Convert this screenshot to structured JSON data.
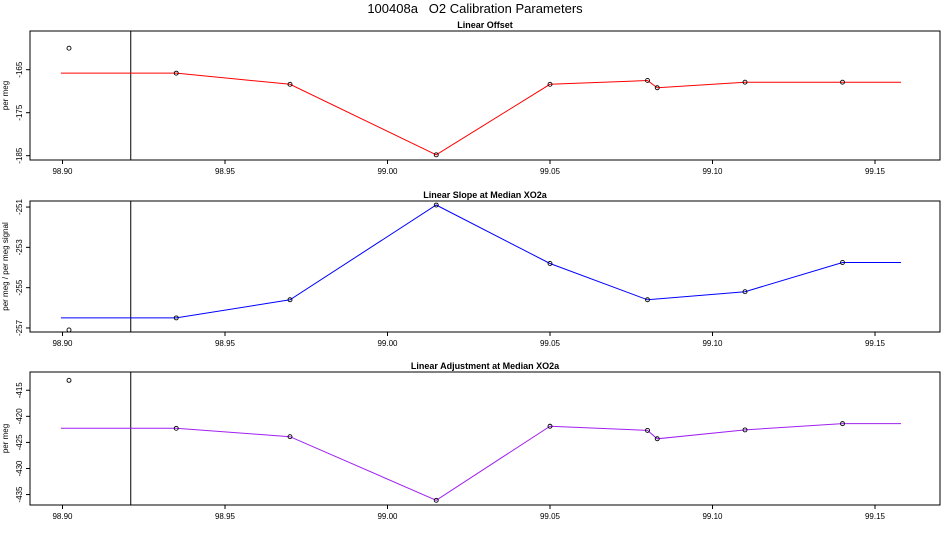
{
  "title": "100408a   O2 Calibration Parameters",
  "chart_data": [
    {
      "type": "line",
      "title": "Linear Offset",
      "ylabel": "per meg",
      "color": "#ff0000",
      "xlim": [
        98.89,
        99.17
      ],
      "ylim": [
        -186,
        -156
      ],
      "xticks": [
        98.9,
        98.95,
        99.0,
        99.05,
        99.1,
        99.15
      ],
      "yticks": [
        -165,
        -175,
        -185
      ],
      "vline_x": 98.921,
      "line": {
        "x": [
          98.8995,
          98.935,
          98.97,
          99.015,
          99.05,
          99.08,
          99.083,
          99.11,
          99.14,
          99.158
        ],
        "y": [
          -165.8,
          -165.8,
          -168.4,
          -184.8,
          -168.4,
          -167.5,
          -169.2,
          -167.9,
          -167.9,
          -167.9
        ]
      },
      "points": {
        "x": [
          98.902,
          98.935,
          98.97,
          99.015,
          99.05,
          99.08,
          99.083,
          99.11,
          99.14
        ],
        "y": [
          -160,
          -165.8,
          -168.4,
          -184.8,
          -168.4,
          -167.5,
          -169.2,
          -167.9,
          -167.9
        ]
      }
    },
    {
      "type": "line",
      "title": "Linear Slope at Median XO2a",
      "ylabel": "per meg / per meg signal",
      "color": "#0000ff",
      "xlim": [
        98.89,
        99.17
      ],
      "ylim": [
        -257.2,
        -250.7
      ],
      "xticks": [
        98.9,
        98.95,
        99.0,
        99.05,
        99.1,
        99.15
      ],
      "yticks": [
        -251,
        -253,
        -255,
        -257
      ],
      "vline_x": 98.921,
      "line": {
        "x": [
          98.8995,
          98.935,
          98.97,
          99.015,
          99.05,
          99.08,
          99.11,
          99.14,
          99.158
        ],
        "y": [
          -256.5,
          -256.5,
          -255.6,
          -250.9,
          -253.8,
          -255.6,
          -255.2,
          -253.75,
          -253.75
        ]
      },
      "points": {
        "x": [
          98.902,
          98.935,
          98.97,
          99.015,
          99.05,
          99.08,
          99.11,
          99.14
        ],
        "y": [
          -257.1,
          -256.5,
          -255.6,
          -250.9,
          -253.8,
          -255.6,
          -255.2,
          -253.75
        ]
      }
    },
    {
      "type": "line",
      "title": "Linear Adjustment at Median XO2a",
      "ylabel": "per meg",
      "color": "#a020f0",
      "xlim": [
        98.89,
        99.17
      ],
      "ylim": [
        -437,
        -411.5
      ],
      "xticks": [
        98.9,
        98.95,
        99.0,
        99.05,
        99.1,
        99.15
      ],
      "yticks": [
        -415,
        -420,
        -425,
        -430,
        -435
      ],
      "vline_x": 98.921,
      "line": {
        "x": [
          98.8995,
          98.935,
          98.97,
          99.015,
          99.05,
          99.08,
          99.083,
          99.11,
          99.14,
          99.158
        ],
        "y": [
          -422.3,
          -422.3,
          -423.9,
          -436.1,
          -421.9,
          -422.7,
          -424.3,
          -422.6,
          -421.4,
          -421.4
        ]
      },
      "points": {
        "x": [
          98.902,
          98.935,
          98.97,
          99.015,
          99.05,
          99.08,
          99.083,
          99.11,
          99.14
        ],
        "y": [
          -413.1,
          -422.3,
          -423.9,
          -436.1,
          -421.9,
          -422.7,
          -424.3,
          -422.6,
          -421.4
        ]
      }
    }
  ]
}
